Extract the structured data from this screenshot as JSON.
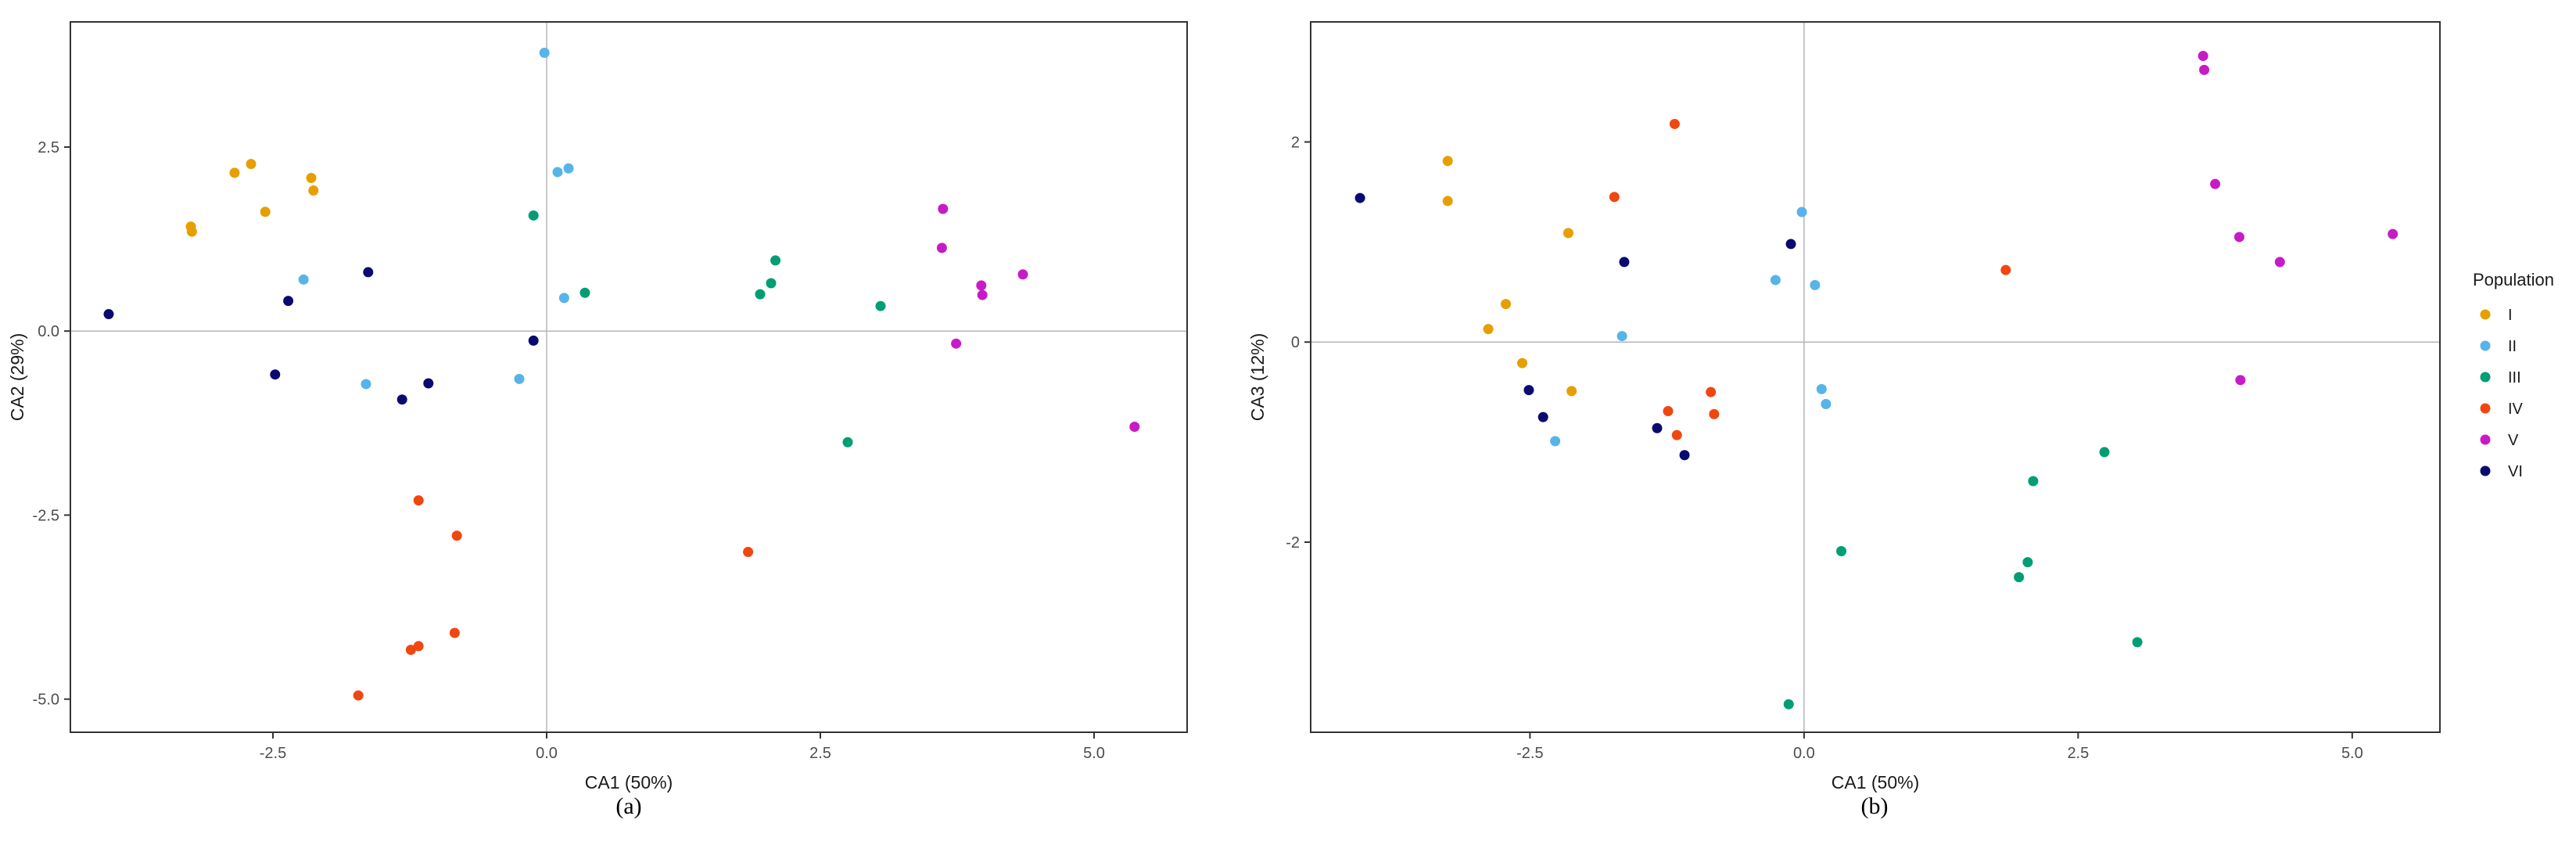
{
  "legend": {
    "title": "Population",
    "entries": [
      {
        "name": "I",
        "color": "#E69F00"
      },
      {
        "name": "II",
        "color": "#56B4E9"
      },
      {
        "name": "III",
        "color": "#009E73"
      },
      {
        "name": "IV",
        "color": "#F0470F"
      },
      {
        "name": "V",
        "color": "#C71BC7"
      },
      {
        "name": "VI",
        "color": "#0A0A70"
      }
    ]
  },
  "chart_data": [
    {
      "type": "scatter",
      "panel_label": "(a)",
      "xlabel": "CA1 (50%)",
      "ylabel": "CA2 (29%)",
      "xlim": [
        -4.35,
        5.85
      ],
      "ylim": [
        -5.45,
        4.2
      ],
      "xticks": [
        -2.5,
        0.0,
        2.5,
        5.0
      ],
      "xtick_labels": [
        "-2.5",
        "0.0",
        "2.5",
        "5.0"
      ],
      "yticks": [
        -5.0,
        -2.5,
        0.0,
        2.5
      ],
      "ytick_labels": [
        "-5.0",
        "-2.5",
        "0.0",
        "2.5"
      ],
      "grid": false,
      "reference_lines": {
        "x": 0,
        "y": 0
      },
      "legend_position": "right",
      "series": [
        {
          "name": "I",
          "points": [
            [
              -3.25,
              1.42
            ],
            [
              -3.24,
              1.35
            ],
            [
              -2.85,
              2.15
            ],
            [
              -2.7,
              2.27
            ],
            [
              -2.57,
              1.62
            ],
            [
              -2.15,
              2.08
            ],
            [
              -2.13,
              1.91
            ]
          ]
        },
        {
          "name": "II",
          "points": [
            [
              -2.22,
              0.7
            ],
            [
              -1.65,
              -0.72
            ],
            [
              -0.25,
              -0.65
            ],
            [
              -0.02,
              3.78
            ],
            [
              0.1,
              2.16
            ],
            [
              0.2,
              2.21
            ],
            [
              0.16,
              0.45
            ]
          ]
        },
        {
          "name": "III",
          "points": [
            [
              -0.12,
              1.57
            ],
            [
              0.35,
              0.52
            ],
            [
              1.95,
              0.5
            ],
            [
              2.05,
              0.65
            ],
            [
              2.09,
              0.96
            ],
            [
              2.75,
              -1.51
            ],
            [
              3.05,
              0.34
            ]
          ]
        },
        {
          "name": "IV",
          "points": [
            [
              -1.72,
              -4.95
            ],
            [
              -1.24,
              -4.33
            ],
            [
              -1.17,
              -4.28
            ],
            [
              -1.17,
              -2.3
            ],
            [
              -0.82,
              -2.78
            ],
            [
              -0.84,
              -4.1
            ],
            [
              1.84,
              -3.0
            ]
          ]
        },
        {
          "name": "V",
          "points": [
            [
              3.62,
              1.66
            ],
            [
              3.61,
              1.13
            ],
            [
              3.74,
              -0.17
            ],
            [
              3.97,
              0.62
            ],
            [
              3.98,
              0.49
            ],
            [
              4.35,
              0.77
            ],
            [
              5.37,
              -1.3
            ]
          ]
        },
        {
          "name": "VI",
          "points": [
            [
              -4.0,
              0.23
            ],
            [
              -2.48,
              -0.59
            ],
            [
              -2.36,
              0.41
            ],
            [
              -1.63,
              0.8
            ],
            [
              -1.32,
              -0.93
            ],
            [
              -1.08,
              -0.71
            ],
            [
              -0.12,
              -0.13
            ]
          ]
        }
      ]
    },
    {
      "type": "scatter",
      "panel_label": "(b)",
      "xlabel": "CA1 (50%)",
      "ylabel": "CA3 (12%)",
      "xlim": [
        -4.5,
        5.8
      ],
      "ylim": [
        -3.9,
        3.2
      ],
      "xticks": [
        -2.5,
        0.0,
        2.5,
        5.0
      ],
      "xtick_labels": [
        "-2.5",
        "0.0",
        "2.5",
        "5.0"
      ],
      "yticks": [
        -2,
        0,
        2
      ],
      "ytick_labels": [
        "-2",
        "0",
        "2"
      ],
      "grid": false,
      "reference_lines": {
        "x": 0,
        "y": 0
      },
      "legend_position": "right",
      "series": [
        {
          "name": "I",
          "points": [
            [
              -3.25,
              1.81
            ],
            [
              -3.25,
              1.41
            ],
            [
              -2.88,
              0.13
            ],
            [
              -2.72,
              0.38
            ],
            [
              -2.57,
              -0.21
            ],
            [
              -2.15,
              1.09
            ],
            [
              -2.12,
              -0.49
            ]
          ]
        },
        {
          "name": "II",
          "points": [
            [
              -2.27,
              -0.99
            ],
            [
              -1.66,
              0.06
            ],
            [
              -0.26,
              0.62
            ],
            [
              -0.02,
              1.3
            ],
            [
              0.1,
              0.57
            ],
            [
              0.16,
              -0.47
            ],
            [
              0.2,
              -0.62
            ]
          ]
        },
        {
          "name": "III",
          "points": [
            [
              -0.14,
              -3.62
            ],
            [
              0.34,
              -2.09
            ],
            [
              1.96,
              -2.35
            ],
            [
              2.04,
              -2.2
            ],
            [
              2.09,
              -1.39
            ],
            [
              2.74,
              -1.1
            ],
            [
              3.04,
              -3.0
            ]
          ]
        },
        {
          "name": "IV",
          "points": [
            [
              -1.73,
              1.45
            ],
            [
              -1.24,
              -0.69
            ],
            [
              -1.18,
              2.18
            ],
            [
              -1.16,
              -0.93
            ],
            [
              -0.85,
              -0.5
            ],
            [
              -0.82,
              -0.72
            ],
            [
              1.84,
              0.72
            ]
          ]
        },
        {
          "name": "V",
          "points": [
            [
              3.64,
              2.86
            ],
            [
              3.65,
              2.72
            ],
            [
              3.75,
              1.58
            ],
            [
              3.97,
              1.05
            ],
            [
              3.98,
              -0.38
            ],
            [
              4.34,
              0.8
            ],
            [
              5.37,
              1.08
            ]
          ]
        },
        {
          "name": "VI",
          "points": [
            [
              -4.05,
              1.44
            ],
            [
              -2.51,
              -0.48
            ],
            [
              -2.38,
              -0.75
            ],
            [
              -1.64,
              0.8
            ],
            [
              -1.34,
              -0.86
            ],
            [
              -1.09,
              -1.13
            ],
            [
              -0.12,
              0.98
            ]
          ]
        }
      ]
    }
  ]
}
